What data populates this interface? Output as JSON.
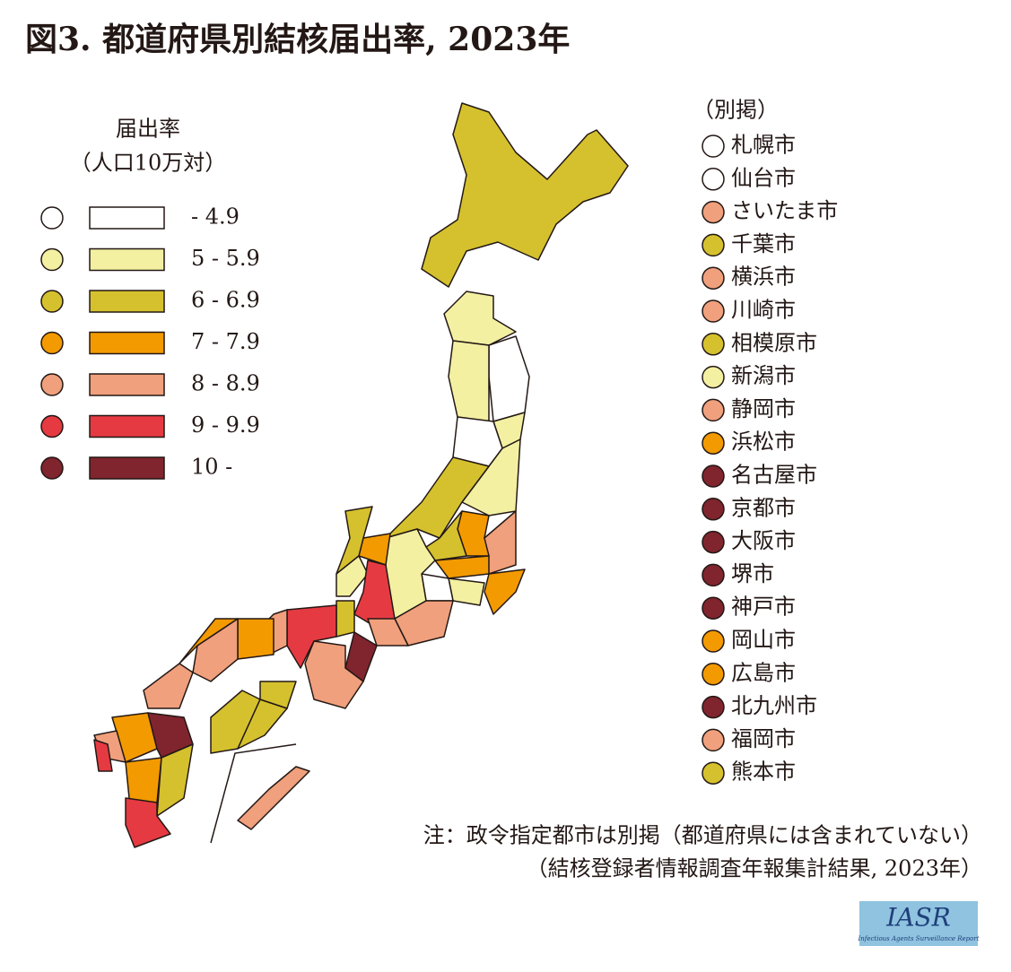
{
  "title": "図3. 都道府県別結核届出率, 2023年",
  "legend": {
    "title": "届出率",
    "subtitle": "（人口10万対）",
    "items": [
      {
        "label": "- 4.9",
        "color": "#ffffff"
      },
      {
        "label": "5 - 5.9",
        "color": "#f3f0a2"
      },
      {
        "label": "6 - 6.9",
        "color": "#d5c12e"
      },
      {
        "label": "7 - 7.9",
        "color": "#f39a00"
      },
      {
        "label": "8 - 8.9",
        "color": "#f0a07c"
      },
      {
        "label": "9 - 9.9",
        "color": "#e63a42"
      },
      {
        "label": "10 -",
        "color": "#80242e"
      }
    ]
  },
  "cities": {
    "title": "（別掲）",
    "items": [
      {
        "name": "札幌市",
        "class": 0
      },
      {
        "name": "仙台市",
        "class": 0
      },
      {
        "name": "さいたま市",
        "class": 4
      },
      {
        "name": "千葉市",
        "class": 2
      },
      {
        "name": "横浜市",
        "class": 4
      },
      {
        "name": "川崎市",
        "class": 4
      },
      {
        "name": "相模原市",
        "class": 2
      },
      {
        "name": "新潟市",
        "class": 1
      },
      {
        "name": "静岡市",
        "class": 4
      },
      {
        "name": "浜松市",
        "class": 3
      },
      {
        "name": "名古屋市",
        "class": 6
      },
      {
        "name": "京都市",
        "class": 6
      },
      {
        "name": "大阪市",
        "class": 6
      },
      {
        "name": "堺市",
        "class": 6
      },
      {
        "name": "神戸市",
        "class": 6
      },
      {
        "name": "岡山市",
        "class": 3
      },
      {
        "name": "広島市",
        "class": 3
      },
      {
        "name": "北九州市",
        "class": 6
      },
      {
        "name": "福岡市",
        "class": 4
      },
      {
        "name": "熊本市",
        "class": 2
      }
    ]
  },
  "notes": [
    "注：政令指定都市は別掲（都道府県には含まれていない）",
    "（結核登録者情報調査年報集計結果, 2023年）"
  ],
  "logo": {
    "title": "IASR",
    "subtitle": "Infectious Agents Surveillance Report"
  }
}
